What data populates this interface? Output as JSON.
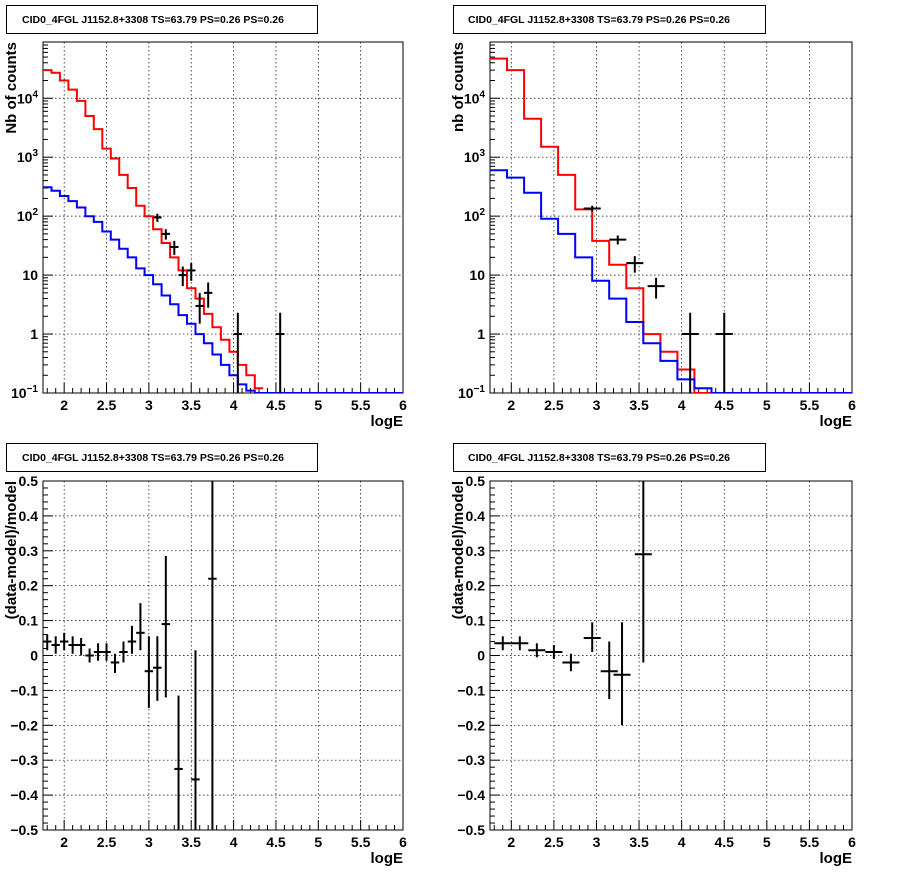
{
  "chart_data": [
    {
      "type": "line",
      "title": "CID0_4FGL J1152.8+3308 TS=63.79 PS=0.26 PS=0.26",
      "xlabel": "logE",
      "ylabel": "Nb of counts",
      "yscale": "log",
      "xlim": [
        1.75,
        6.0
      ],
      "ylim": [
        0.1,
        90000
      ],
      "grid": true,
      "x_ticks": [
        "2",
        "2.5",
        "3",
        "3.5",
        "4",
        "4.5",
        "5",
        "5.5",
        "6"
      ],
      "y_ticks": [
        "10^-1",
        "1",
        "10",
        "10^2",
        "10^3",
        "10^4"
      ],
      "series": [
        {
          "color": "#ff0000",
          "style": "step",
          "bin_edges": [
            1.75,
            1.85,
            1.95,
            2.05,
            2.15,
            2.25,
            2.35,
            2.45,
            2.55,
            2.65,
            2.75,
            2.85,
            2.95,
            3.05,
            3.15,
            3.25,
            3.35,
            3.45,
            3.55,
            3.65,
            3.75,
            3.85,
            3.95,
            4.05,
            4.15,
            4.25,
            4.35
          ],
          "values": [
            30000,
            27000,
            20000,
            14000,
            9000,
            5000,
            3000,
            1400,
            950,
            500,
            300,
            150,
            100,
            60,
            35,
            20,
            12,
            6,
            4,
            2.2,
            1.3,
            0.8,
            0.5,
            0.3,
            0.2,
            0.12
          ]
        },
        {
          "color": "#0000ff",
          "style": "step",
          "bin_edges": [
            1.75,
            1.85,
            1.95,
            2.05,
            2.15,
            2.25,
            2.35,
            2.45,
            2.55,
            2.65,
            2.75,
            2.85,
            2.95,
            3.05,
            3.15,
            3.25,
            3.35,
            3.45,
            3.55,
            3.65,
            3.75,
            3.85,
            3.95,
            4.05,
            4.15,
            4.25,
            4.35,
            6.0
          ],
          "values": [
            310,
            270,
            220,
            180,
            140,
            100,
            80,
            55,
            40,
            28,
            20,
            13,
            10,
            7,
            4.5,
            3.2,
            2.1,
            1.5,
            1.0,
            0.7,
            0.45,
            0.3,
            0.2,
            0.14,
            0.11,
            0.1,
            0.1
          ]
        }
      ],
      "data_points": {
        "color": "#000000",
        "x": [
          3.1,
          3.2,
          3.3,
          3.4,
          3.5,
          3.6,
          3.7,
          4.05,
          4.55
        ],
        "xerr": [
          0.05,
          0.05,
          0.05,
          0.05,
          0.05,
          0.05,
          0.05,
          0.05,
          0.05
        ],
        "y": [
          95,
          50,
          30,
          10,
          12,
          3,
          5,
          1,
          1
        ],
        "ylow": [
          80,
          40,
          22,
          6.5,
          8,
          1.5,
          2.8,
          0.1,
          0.1
        ],
        "yhigh": [
          110,
          60,
          38,
          14,
          16,
          5,
          7.5,
          2.3,
          2.3
        ]
      }
    },
    {
      "type": "line",
      "title": "CID0_4FGL J1152.8+3308 TS=63.79 PS=0.26 PS=0.26",
      "xlabel": "logE",
      "ylabel": "nb of counts",
      "yscale": "log",
      "xlim": [
        1.75,
        6.0
      ],
      "ylim": [
        0.1,
        90000
      ],
      "grid": true,
      "x_ticks": [
        "2",
        "2.5",
        "3",
        "3.5",
        "4",
        "4.5",
        "5",
        "5.5",
        "6"
      ],
      "y_ticks": [
        "10^-1",
        "1",
        "10",
        "10^2",
        "10^3",
        "10^4"
      ],
      "series": [
        {
          "color": "#ff0000",
          "style": "step",
          "bin_edges": [
            1.75,
            1.95,
            2.15,
            2.35,
            2.55,
            2.75,
            2.95,
            3.15,
            3.35,
            3.55,
            3.75,
            3.95,
            4.15,
            4.35
          ],
          "values": [
            47000,
            30000,
            4500,
            1500,
            500,
            130,
            38,
            15,
            6,
            1,
            0.5,
            0.25,
            0.1
          ]
        },
        {
          "color": "#0000ff",
          "style": "step",
          "bin_edges": [
            1.75,
            1.95,
            2.15,
            2.35,
            2.55,
            2.75,
            2.95,
            3.15,
            3.35,
            3.55,
            3.75,
            3.95,
            4.15,
            4.35,
            6.0
          ],
          "values": [
            600,
            450,
            250,
            90,
            50,
            20,
            8,
            4,
            1.6,
            0.7,
            0.35,
            0.17,
            0.12,
            0.1
          ]
        }
      ],
      "data_points": {
        "color": "#000000",
        "x": [
          2.95,
          3.25,
          3.45,
          3.7,
          4.1,
          4.5
        ],
        "xerr": [
          0.1,
          0.1,
          0.1,
          0.1,
          0.1,
          0.1
        ],
        "y": [
          135,
          40,
          16,
          6.5,
          1,
          1
        ],
        "ylow": [
          120,
          33,
          11,
          4,
          0.1,
          0.1
        ],
        "yhigh": [
          150,
          47,
          21,
          9,
          2.3,
          2.3
        ]
      }
    },
    {
      "type": "scatter",
      "title": "CID0_4FGL J1152.8+3308 TS=63.79 PS=0.26 PS=0.26",
      "xlabel": "logE",
      "ylabel": "(data-model)/model",
      "xlim": [
        1.75,
        6.0
      ],
      "ylim": [
        -0.5,
        0.5
      ],
      "grid": true,
      "x_ticks": [
        "2",
        "2.5",
        "3",
        "3.5",
        "4",
        "4.5",
        "5",
        "5.5",
        "6"
      ],
      "y_ticks": [
        "−0.5",
        "−0.4",
        "−0.3",
        "−0.2",
        "−0.1",
        "0",
        "0.1",
        "0.2",
        "0.3",
        "0.4",
        "0.5"
      ],
      "data_points": {
        "color": "#000000",
        "x": [
          1.8,
          1.9,
          2.0,
          2.1,
          2.2,
          2.3,
          2.4,
          2.5,
          2.6,
          2.7,
          2.8,
          2.9,
          3.0,
          3.1,
          3.2,
          3.35,
          3.55,
          3.75
        ],
        "xerr": [
          0.05,
          0.05,
          0.05,
          0.05,
          0.05,
          0.05,
          0.05,
          0.05,
          0.05,
          0.05,
          0.05,
          0.05,
          0.05,
          0.05,
          0.05,
          0.05,
          0.05,
          0.05
        ],
        "y": [
          0.04,
          0.03,
          0.04,
          0.03,
          0.03,
          0.0,
          0.01,
          0.01,
          -0.02,
          0.01,
          0.04,
          0.065,
          -0.045,
          -0.035,
          0.09,
          -0.325,
          -0.355,
          0.22
        ],
        "ylow": [
          0.015,
          0.005,
          0.015,
          0.005,
          0.0,
          -0.02,
          -0.015,
          -0.015,
          -0.05,
          -0.02,
          0.005,
          0.015,
          -0.15,
          -0.13,
          -0.12,
          -0.5,
          -0.5,
          -0.5
        ],
        "yhigh": [
          0.06,
          0.055,
          0.065,
          0.055,
          0.05,
          0.02,
          0.035,
          0.035,
          0.005,
          0.04,
          0.085,
          0.15,
          0.055,
          0.055,
          0.285,
          -0.115,
          0.015,
          0.5
        ]
      }
    },
    {
      "type": "scatter",
      "title": "CID0_4FGL J1152.8+3308 TS=63.79 PS=0.26 PS=0.26",
      "xlabel": "logE",
      "ylabel": "(data-model)/model",
      "xlim": [
        1.75,
        6.0
      ],
      "ylim": [
        -0.5,
        0.5
      ],
      "grid": true,
      "x_ticks": [
        "2",
        "2.5",
        "3",
        "3.5",
        "4",
        "4.5",
        "5",
        "5.5",
        "6"
      ],
      "y_ticks": [
        "−0.5",
        "−0.4",
        "−0.3",
        "−0.2",
        "−0.1",
        "0",
        "0.1",
        "0.2",
        "0.3",
        "0.4",
        "0.5"
      ],
      "data_points": {
        "color": "#000000",
        "x": [
          1.9,
          2.1,
          2.3,
          2.5,
          2.7,
          2.95,
          3.15,
          3.3,
          3.55
        ],
        "xerr": [
          0.1,
          0.1,
          0.1,
          0.1,
          0.1,
          0.1,
          0.1,
          0.1,
          0.1
        ],
        "y": [
          0.035,
          0.035,
          0.015,
          0.01,
          -0.02,
          0.05,
          -0.045,
          -0.055,
          0.29
        ],
        "ylow": [
          0.015,
          0.015,
          -0.005,
          -0.01,
          -0.045,
          0.01,
          -0.125,
          -0.2,
          -0.02
        ],
        "yhigh": [
          0.055,
          0.055,
          0.035,
          0.03,
          0.005,
          0.095,
          0.04,
          0.095,
          0.5
        ]
      }
    }
  ]
}
